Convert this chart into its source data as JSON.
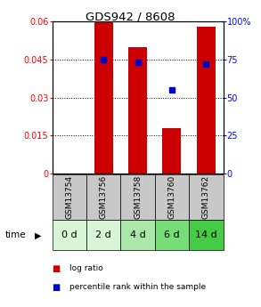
{
  "title": "GDS942 / 8608",
  "samples": [
    "GSM13754",
    "GSM13756",
    "GSM13758",
    "GSM13760",
    "GSM13762"
  ],
  "time_labels": [
    "0 d",
    "2 d",
    "4 d",
    "6 d",
    "14 d"
  ],
  "log_ratios": [
    0.0,
    0.06,
    0.05,
    0.018,
    0.058
  ],
  "percentile_ranks": [
    null,
    75,
    73,
    55,
    72
  ],
  "ylim_left": [
    0,
    0.06
  ],
  "ylim_right": [
    0,
    100
  ],
  "yticks_left": [
    0,
    0.015,
    0.03,
    0.045,
    0.06
  ],
  "ytick_labels_left": [
    "0",
    "0.015",
    "0.03",
    "0.045",
    "0.06"
  ],
  "yticks_right": [
    0,
    25,
    50,
    75,
    100
  ],
  "ytick_labels_right": [
    "0",
    "25",
    "50",
    "75",
    "100%"
  ],
  "bar_color": "#cc0000",
  "dot_color": "#0000cc",
  "bar_width": 0.55,
  "sample_box_color": "#c8c8c8",
  "time_box_colors": [
    "#d8f5d8",
    "#d8f5d8",
    "#aae8aa",
    "#77dd77",
    "#44cc44"
  ],
  "legend_bar_label": "log ratio",
  "legend_dot_label": "percentile rank within the sample",
  "time_arrow_label": "time"
}
